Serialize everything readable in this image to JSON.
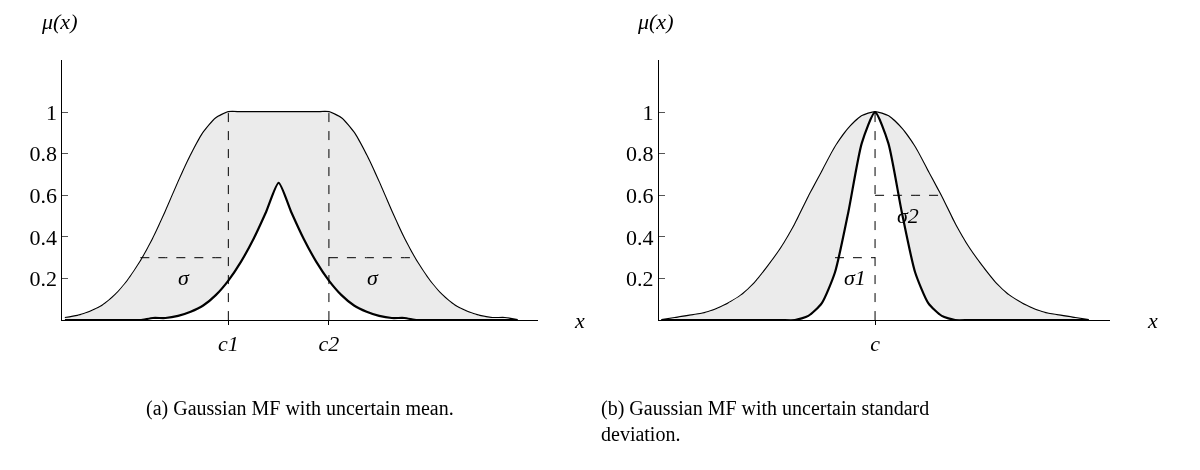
{
  "chart_data": [
    {
      "type": "line",
      "xlabel": "x",
      "ylabel": "μ(x)",
      "legend": false,
      "marker": "none",
      "categories": [
        null,
        null,
        null,
        null,
        null,
        null,
        null,
        null,
        null,
        null,
        null,
        null,
        null,
        "c1",
        null,
        null,
        null,
        null,
        null,
        null,
        null,
        "c2",
        null,
        null,
        null,
        null,
        null,
        null,
        null,
        null,
        null,
        null,
        null,
        null,
        null,
        null,
        null
      ],
      "ylim": [
        0,
        1.25
      ],
      "yticks": [
        0.2,
        0.4,
        0.6,
        0.8,
        1
      ],
      "series": [
        {
          "color": "#000000",
          "line_style": "solid",
          "values": [
            0.01,
            0.02,
            0.04,
            0.07,
            0.12,
            0.19,
            0.28,
            0.39,
            0.52,
            0.66,
            0.79,
            0.9,
            0.97,
            1,
            1,
            1,
            1,
            1,
            1,
            1,
            1,
            1,
            0.97,
            0.9,
            0.79,
            0.66,
            0.52,
            0.39,
            0.28,
            0.19,
            0.12,
            0.07,
            0.04,
            0.02,
            0.01,
            0.01,
            0
          ]
        },
        {
          "color": "#000000",
          "line_style": "solid",
          "values": [
            0,
            0,
            0,
            0,
            0,
            0,
            0,
            0.01,
            0.01,
            0.02,
            0.04,
            0.07,
            0.12,
            0.19,
            0.28,
            0.39,
            0.52,
            0.66,
            0.52,
            0.39,
            0.28,
            0.19,
            0.12,
            0.07,
            0.04,
            0.02,
            0.01,
            0.01,
            0,
            0,
            0,
            0,
            0,
            0,
            0,
            0,
            0
          ],
          "lower": [
            0,
            0,
            0,
            0,
            0,
            0,
            0,
            0.01,
            0.01,
            0.02,
            0.04,
            0.07,
            0.12,
            0.19,
            0.28,
            0.39,
            0.52,
            0.66,
            0.52,
            0.39,
            0.28,
            0.19,
            0.12,
            0.07,
            0.04,
            0.02,
            0.01,
            0.01,
            0,
            0,
            0,
            0,
            0,
            0,
            0,
            0,
            0
          ],
          "upper": [
            0.01,
            0.02,
            0.04,
            0.07,
            0.12,
            0.19,
            0.28,
            0.39,
            0.52,
            0.66,
            0.79,
            0.9,
            0.97,
            1,
            1,
            1,
            1,
            1,
            1,
            1,
            1,
            1,
            0.97,
            0.9,
            0.79,
            0.66,
            0.52,
            0.39,
            0.28,
            0.19,
            0.12,
            0.07,
            0.04,
            0.02,
            0.01,
            0.01,
            0
          ]
        },
        {
          "color": "#000000",
          "line_style": "dashed",
          "x": [
            "c1",
            "c1"
          ],
          "values": [
            0,
            1
          ]
        },
        {
          "color": "#000000",
          "line_style": "dashed",
          "x": [
            "c2",
            "c2"
          ],
          "values": [
            0,
            1
          ]
        },
        {
          "name": "σ",
          "color": "#000000",
          "line_style": "dashed",
          "values": [
            null,
            null,
            null,
            null,
            null,
            null,
            0.3,
            0.3,
            0.3,
            0.3,
            0.3,
            0.3,
            0.3,
            0.3,
            null,
            null,
            null,
            null,
            null,
            null,
            null,
            null,
            null,
            null,
            null,
            null,
            null,
            null,
            null,
            null,
            null,
            null,
            null,
            null,
            null,
            null,
            null
          ]
        },
        {
          "name": "σ",
          "color": "#000000",
          "line_style": "dashed",
          "values": [
            null,
            null,
            null,
            null,
            null,
            null,
            null,
            null,
            null,
            null,
            null,
            null,
            null,
            null,
            null,
            null,
            null,
            null,
            null,
            null,
            null,
            0.3,
            0.3,
            0.3,
            0.3,
            0.3,
            0.3,
            0.3,
            0.3,
            null,
            null,
            null,
            null,
            null,
            null,
            null,
            null
          ]
        }
      ],
      "annotations": [
        "(a) Gaussian MF with uncertain mean."
      ]
    },
    {
      "type": "line",
      "xlabel": "x",
      "ylabel": "μ(x)",
      "legend": false,
      "marker": "none",
      "categories": [
        null,
        null,
        null,
        null,
        null,
        null,
        null,
        null,
        null,
        null,
        null,
        null,
        null,
        null,
        null,
        null,
        "c",
        null,
        null,
        null,
        null,
        null,
        null,
        null,
        null,
        null,
        null,
        null,
        null,
        null,
        null,
        null,
        null
      ],
      "ylim": [
        0,
        1.25
      ],
      "yticks": [
        0.2,
        0.4,
        0.6,
        0.8,
        1
      ],
      "series": [
        {
          "color": "#000000",
          "line_style": "solid",
          "values": [
            0,
            0.01,
            0.02,
            0.03,
            0.05,
            0.08,
            0.12,
            0.18,
            0.26,
            0.35,
            0.46,
            0.59,
            0.71,
            0.83,
            0.92,
            0.98,
            1,
            0.98,
            0.92,
            0.83,
            0.71,
            0.59,
            0.46,
            0.35,
            0.26,
            0.18,
            0.12,
            0.08,
            0.05,
            0.03,
            0.02,
            0.01,
            0
          ]
        },
        {
          "color": "#000000",
          "line_style": "solid",
          "values": [
            0,
            0,
            0,
            0,
            0,
            0,
            0,
            0,
            0,
            0,
            0,
            0.02,
            0.08,
            0.23,
            0.52,
            0.85,
            1,
            0.85,
            0.52,
            0.23,
            0.08,
            0.02,
            0,
            0,
            0,
            0,
            0,
            0,
            0,
            0,
            0,
            0,
            0
          ],
          "lower": [
            0,
            0,
            0,
            0,
            0,
            0,
            0,
            0,
            0,
            0,
            0,
            0.02,
            0.08,
            0.23,
            0.52,
            0.85,
            1,
            0.85,
            0.52,
            0.23,
            0.08,
            0.02,
            0,
            0,
            0,
            0,
            0,
            0,
            0,
            0,
            0,
            0,
            0
          ],
          "upper": [
            0,
            0.01,
            0.02,
            0.03,
            0.05,
            0.08,
            0.12,
            0.18,
            0.26,
            0.35,
            0.46,
            0.59,
            0.71,
            0.83,
            0.92,
            0.98,
            1,
            0.98,
            0.92,
            0.83,
            0.71,
            0.59,
            0.46,
            0.35,
            0.26,
            0.18,
            0.12,
            0.08,
            0.05,
            0.03,
            0.02,
            0.01,
            0
          ]
        },
        {
          "color": "#000000",
          "line_style": "dashed",
          "x": [
            "c",
            "c"
          ],
          "values": [
            0,
            1
          ]
        },
        {
          "name": "σ1",
          "color": "#000000",
          "line_style": "dashed",
          "values": [
            null,
            null,
            null,
            null,
            null,
            null,
            null,
            null,
            null,
            null,
            null,
            null,
            null,
            0.3,
            0.3,
            0.3,
            0.3,
            null,
            null,
            null,
            null,
            null,
            null,
            null,
            null,
            null,
            null,
            null,
            null,
            null,
            null,
            null,
            null
          ]
        },
        {
          "name": "σ2",
          "color": "#000000",
          "line_style": "dashed",
          "values": [
            null,
            null,
            null,
            null,
            null,
            null,
            null,
            null,
            null,
            null,
            null,
            null,
            null,
            null,
            null,
            null,
            0.6,
            0.6,
            0.6,
            0.6,
            0.6,
            0.6,
            null,
            null,
            null,
            null,
            null,
            null,
            null,
            null,
            null,
            null,
            null
          ]
        }
      ],
      "annotations": [
        "(b) Gaussian MF with uncertain standard deviation."
      ]
    }
  ]
}
